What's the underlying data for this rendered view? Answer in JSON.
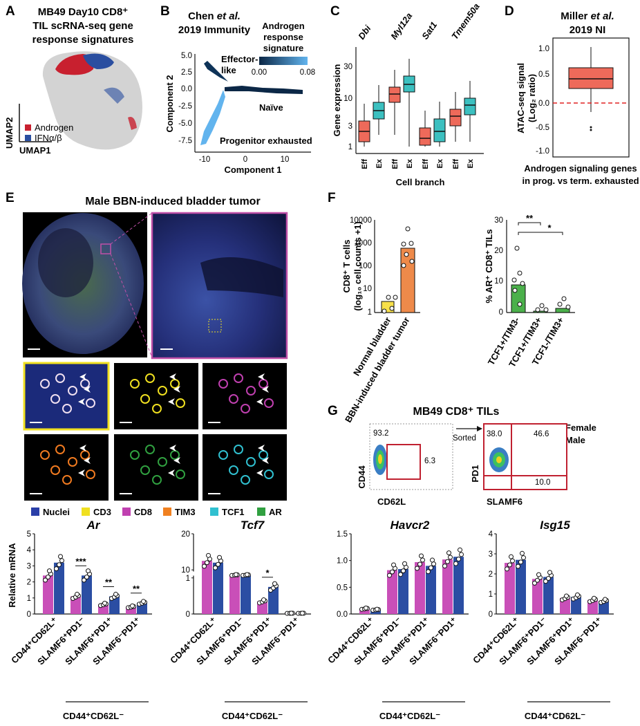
{
  "panel_letters": [
    "A",
    "B",
    "C",
    "D",
    "E",
    "F",
    "G"
  ],
  "A": {
    "title_lines": [
      "MB49 Day10 CD8⁺",
      "TIL scRNA-seq gene",
      "response signatures"
    ],
    "legend": [
      {
        "label": "Androgen",
        "color": "#c8202f"
      },
      {
        "label": "IFNα/β",
        "color": "#2a4ea0"
      }
    ],
    "xlabel": "UMAP1",
    "ylabel": "UMAP2"
  },
  "B": {
    "title_lines": [
      "Chen et al.",
      "2019 Immunity"
    ],
    "colorbar_title": [
      "Androgen",
      "response",
      "signature"
    ],
    "colorbar_ticks": [
      "0.00",
      "0.08"
    ],
    "xlabel": "Component 1",
    "ylabel": "Component 2",
    "xticks": [
      "-10",
      "0",
      "10"
    ],
    "yticks": [
      "5.0",
      "2.5",
      "0.0",
      "-2.5",
      "-5.0",
      "-7.5"
    ],
    "branch_labels": [
      "Effector-",
      "like",
      "Naïve",
      "Progenitor exhausted"
    ]
  },
  "C": {
    "genes": [
      "Dbi",
      "Myl12a",
      "Sat1",
      "Tmem50a"
    ],
    "ylabel": "Gene expression",
    "xlabel": "Cell branch",
    "yticks": [
      "30",
      "10",
      "3",
      "1"
    ],
    "groups": [
      "Eff",
      "Ex"
    ]
  },
  "D": {
    "title_lines": [
      "Miller et al.",
      "2019 NI"
    ],
    "ylabel_lines": [
      "ATAC-seq signal",
      "(Log₂ ratio)"
    ],
    "yticks": [
      "1.0",
      "0.5",
      "0.0",
      "-0.5",
      "-1.0"
    ],
    "caption_lines": [
      "Androgen signaling genes",
      "in prog. vs term. exhausted"
    ]
  },
  "E": {
    "title": "Male BBN-induced bladder tumor",
    "legend": [
      {
        "label": "Nuclei",
        "color": "#2b3fa8"
      },
      {
        "label": "CD3",
        "color": "#f0e020"
      },
      {
        "label": "CD8",
        "color": "#c040b0"
      },
      {
        "label": "TIM3",
        "color": "#f08020"
      },
      {
        "label": "TCF1",
        "color": "#30c0d0"
      },
      {
        "label": "AR",
        "color": "#30a040"
      }
    ]
  },
  "F": {
    "left": {
      "ylabel_lines": [
        "CD8⁺ T cells",
        "(log₁₀ cell counts +1)"
      ],
      "yticks": [
        "10000",
        "1000",
        "100",
        "10",
        "1"
      ],
      "categories": [
        "Normal bladder",
        "BBN-induced bladder tumor"
      ]
    },
    "right": {
      "ylabel": "% AR⁺ CD8⁺ TILs",
      "yticks": [
        "30",
        "20",
        "10",
        "0"
      ],
      "categories": [
        "TCF1+/TIM3-",
        "TCF1+/TIM3+",
        "TCF1-/TIM3+"
      ],
      "sig": [
        "**",
        "*"
      ]
    }
  },
  "G": {
    "title": "MB49 CD8⁺ TILs",
    "legend": [
      {
        "label": "Female",
        "color": "#c94fb8"
      },
      {
        "label": "Male",
        "color": "#2b4ea3"
      }
    ],
    "facs1": {
      "xlabel": "CD62L",
      "ylabel": "CD44",
      "values": [
        "93.2",
        "6.3"
      ]
    },
    "sorted_label": "Sorted",
    "facs2": {
      "xlabel": "SLAMF6",
      "ylabel": "PD1",
      "values": [
        "38.0",
        "46.6",
        "10.0"
      ]
    }
  },
  "bottom": {
    "ylabel": "Relative mRNA",
    "categories": [
      "CD44⁺CD62L⁺",
      "SLAMF6⁺PD1⁻",
      "SLAMF6⁺PD1⁺",
      "SLAMF6⁻PD1⁺"
    ],
    "bracket_label": "CD44⁺CD62L⁻"
  },
  "chart_data": [
    {
      "type": "bar",
      "title": "Ar",
      "categories": [
        "CD44⁺CD62L⁺",
        "SLAMF6⁺PD1⁻",
        "SLAMF6⁺PD1⁺",
        "SLAMF6⁻PD1⁺"
      ],
      "series": [
        {
          "name": "Female",
          "values": [
            2.4,
            1.1,
            0.6,
            0.45
          ]
        },
        {
          "name": "Male",
          "values": [
            3.2,
            2.4,
            1.1,
            0.7
          ]
        }
      ],
      "ylim": [
        0,
        5
      ],
      "yticks": [
        "0",
        "1",
        "2",
        "3",
        "4",
        "5"
      ],
      "sig": [
        "",
        "***",
        "**",
        "**"
      ]
    },
    {
      "type": "bar",
      "title": "Tcf7",
      "categories": [
        "CD44⁺CD62L⁺",
        "SLAMF6⁺PD1⁻",
        "SLAMF6⁺PD1⁺",
        "SLAMF6⁻PD1⁺"
      ],
      "series": [
        {
          "name": "Female",
          "values": [
            12.5,
            7.5,
            0.35,
            0.02
          ]
        },
        {
          "name": "Male",
          "values": [
            12.0,
            7.5,
            0.75,
            0.02
          ]
        }
      ],
      "axis_break": true,
      "yticks": [
        "20",
        "10",
        "1",
        "0"
      ],
      "sig": [
        "",
        "",
        "*",
        ""
      ]
    },
    {
      "type": "bar",
      "title": "Havcr2",
      "categories": [
        "CD44⁺CD62L⁺",
        "SLAMF6⁺PD1⁻",
        "SLAMF6⁺PD1⁺",
        "SLAMF6⁻PD1⁺"
      ],
      "series": [
        {
          "name": "Female",
          "values": [
            0.1,
            0.82,
            0.97,
            1.02
          ]
        },
        {
          "name": "Male",
          "values": [
            0.08,
            0.84,
            0.9,
            1.07
          ]
        }
      ],
      "ylim": [
        0,
        1.5
      ],
      "yticks": [
        "0.0",
        "0.5",
        "1.0",
        "1.5"
      ],
      "sig": [
        "",
        "",
        "",
        ""
      ]
    },
    {
      "type": "bar",
      "title": "Isg15",
      "categories": [
        "CD44⁺CD62L⁺",
        "SLAMF6⁺PD1⁻",
        "SLAMF6⁺PD1⁺",
        "SLAMF6⁻PD1⁺"
      ],
      "series": [
        {
          "name": "Female",
          "values": [
            2.55,
            1.75,
            0.8,
            0.7
          ]
        },
        {
          "name": "Male",
          "values": [
            2.7,
            1.85,
            0.85,
            0.65
          ]
        }
      ],
      "ylim": [
        0,
        4
      ],
      "yticks": [
        "0",
        "1",
        "2",
        "3",
        "4"
      ],
      "sig": [
        "",
        "",
        "",
        ""
      ]
    }
  ]
}
